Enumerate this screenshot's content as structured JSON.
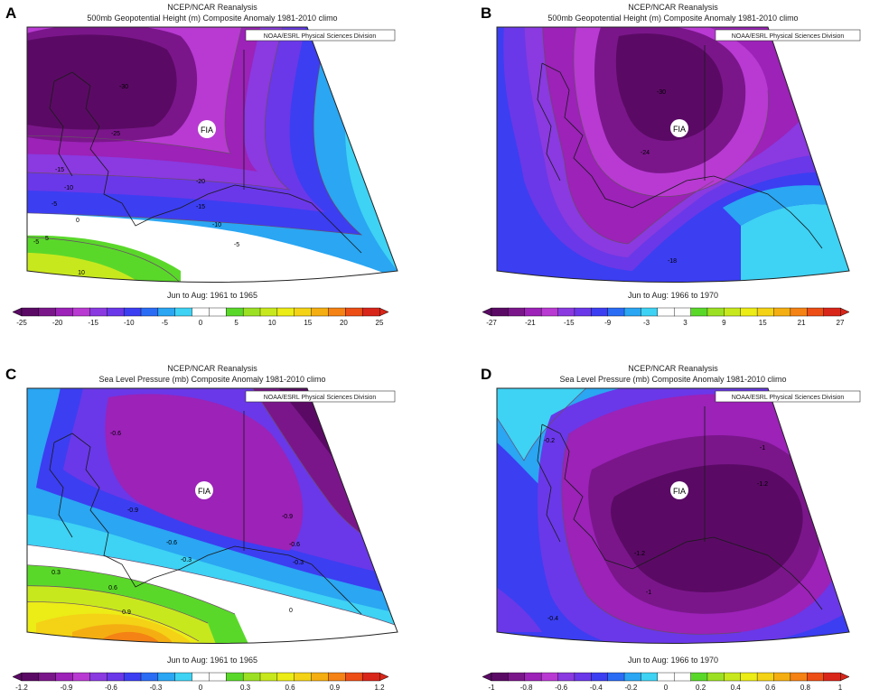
{
  "colors": {
    "scale": [
      "#5a0a64",
      "#7a168a",
      "#9c22b8",
      "#b83ad2",
      "#8a3ae0",
      "#6a38e8",
      "#3c3ef2",
      "#2a6cf4",
      "#2aa6f2",
      "#3ed2f4",
      "#ffffff",
      "#ffffff",
      "#5ad82a",
      "#9ce024",
      "#c8e81e",
      "#ecec16",
      "#f4d216",
      "#f4ae12",
      "#f48214",
      "#ec4e16",
      "#d8261a"
    ],
    "land_outline": "#1a1a1a",
    "frame": "#222222",
    "contour": "#6a4a6a"
  },
  "panels": [
    {
      "letter": "A",
      "header_line1": "NCEP/NCAR Reanalysis",
      "header_line2": "500mb Geopotential Height (m) Composite Anomaly 1981-2010 climo",
      "credit": "NOAA/ESRL Physical Sciences Division",
      "period": "Jun to Aug: 1961 to 1965",
      "site_label": "FIA",
      "contour_labels": [
        "-30",
        "-25",
        "-15",
        "-10",
        "-5",
        "0",
        "-5",
        "5",
        "10",
        "-20",
        "-15",
        "-10",
        "-5"
      ],
      "colorbar_ticks": [
        "-25",
        "-20",
        "-15",
        "-10",
        "-5",
        "0",
        "5",
        "10",
        "15",
        "20",
        "25"
      ]
    },
    {
      "letter": "B",
      "header_line1": "NCEP/NCAR Reanalysis",
      "header_line2": "500mb Geopotential Height (m) Composite Anomaly 1981-2010 climo",
      "credit": "NOAA/ESRL Physical Sciences Division",
      "period": "Jun to Aug: 1966 to 1970",
      "site_label": "FIA",
      "contour_labels": [
        "-30",
        "-24",
        "-18"
      ],
      "colorbar_ticks": [
        "-27",
        "-21",
        "-15",
        "-9",
        "-3",
        "3",
        "9",
        "15",
        "21",
        "27"
      ]
    },
    {
      "letter": "C",
      "header_line1": "NCEP/NCAR Reanalysis",
      "header_line2": "Sea Level Pressure (mb) Composite Anomaly 1981-2010 climo",
      "credit": "NOAA/ESRL Physical Sciences Division",
      "period": "Jun to Aug: 1961 to 1965",
      "site_label": "FIA",
      "contour_labels": [
        "-0.6",
        "-0.9",
        "-0.9",
        "-0.6",
        "-0.3",
        "-0.6",
        "-0.3",
        "0.3",
        "0.6",
        "0.9",
        "0"
      ],
      "colorbar_ticks": [
        "-1.2",
        "-0.9",
        "-0.6",
        "-0.3",
        "0",
        "0.3",
        "0.6",
        "0.9",
        "1.2"
      ]
    },
    {
      "letter": "D",
      "header_line1": "NCEP/NCAR Reanalysis",
      "header_line2": "Sea Level Pressure (mb) Composite Anomaly 1981-2010 climo",
      "credit": "NOAA/ESRL Physical Sciences Division",
      "period": "Jun to Aug: 1966 to 1970",
      "site_label": "FIA",
      "contour_labels": [
        "-0.2",
        "-1",
        "-1.2",
        "-1.2",
        "-1",
        "-0.4"
      ],
      "colorbar_ticks": [
        "-1",
        "-0.8",
        "-0.6",
        "-0.4",
        "-0.2",
        "0",
        "0.2",
        "0.4",
        "0.6",
        "0.8",
        "1"
      ]
    }
  ],
  "chart_data": [
    {
      "type": "heatmap",
      "title": "500mb Geopotential Height (m) Composite Anomaly 1981-2010 climo",
      "subtitle": "Jun to Aug: 1961 to 1965",
      "variable": "500mb Geopotential Height (m)",
      "colorbar_range": [
        -25,
        25
      ],
      "colorbar_step": 2.5,
      "colorbar_ticks": [
        -25,
        -20,
        -15,
        -10,
        -5,
        0,
        5,
        10,
        15,
        20,
        25
      ],
      "contour_values": [
        -30,
        -25,
        -20,
        -15,
        -10,
        -5,
        0,
        5,
        10
      ]
    },
    {
      "type": "heatmap",
      "title": "500mb Geopotential Height (m) Composite Anomaly 1981-2010 climo",
      "subtitle": "Jun to Aug: 1966 to 1970",
      "variable": "500mb Geopotential Height (m)",
      "colorbar_range": [
        -27,
        27
      ],
      "colorbar_step": 3,
      "colorbar_ticks": [
        -27,
        -21,
        -15,
        -9,
        -3,
        3,
        9,
        15,
        21,
        27
      ],
      "contour_values": [
        -30,
        -24,
        -18
      ]
    },
    {
      "type": "heatmap",
      "title": "Sea Level Pressure (mb) Composite Anomaly 1981-2010 climo",
      "subtitle": "Jun to Aug: 1961 to 1965",
      "variable": "Sea Level Pressure (mb)",
      "colorbar_range": [
        -1.2,
        1.2
      ],
      "colorbar_step": 0.15,
      "colorbar_ticks": [
        -1.2,
        -0.9,
        -0.6,
        -0.3,
        0,
        0.3,
        0.6,
        0.9,
        1.2
      ],
      "contour_values": [
        -0.9,
        -0.6,
        -0.3,
        0,
        0.3,
        0.6,
        0.9
      ]
    },
    {
      "type": "heatmap",
      "title": "Sea Level Pressure (mb) Composite Anomaly 1981-2010 climo",
      "subtitle": "Jun to Aug: 1966 to 1970",
      "variable": "Sea Level Pressure (mb)",
      "colorbar_range": [
        -1,
        1
      ],
      "colorbar_step": 0.1,
      "colorbar_ticks": [
        -1,
        -0.8,
        -0.6,
        -0.4,
        -0.2,
        0,
        0.2,
        0.4,
        0.6,
        0.8,
        1
      ],
      "contour_values": [
        -1.2,
        -1,
        -0.4,
        -0.2
      ]
    }
  ]
}
